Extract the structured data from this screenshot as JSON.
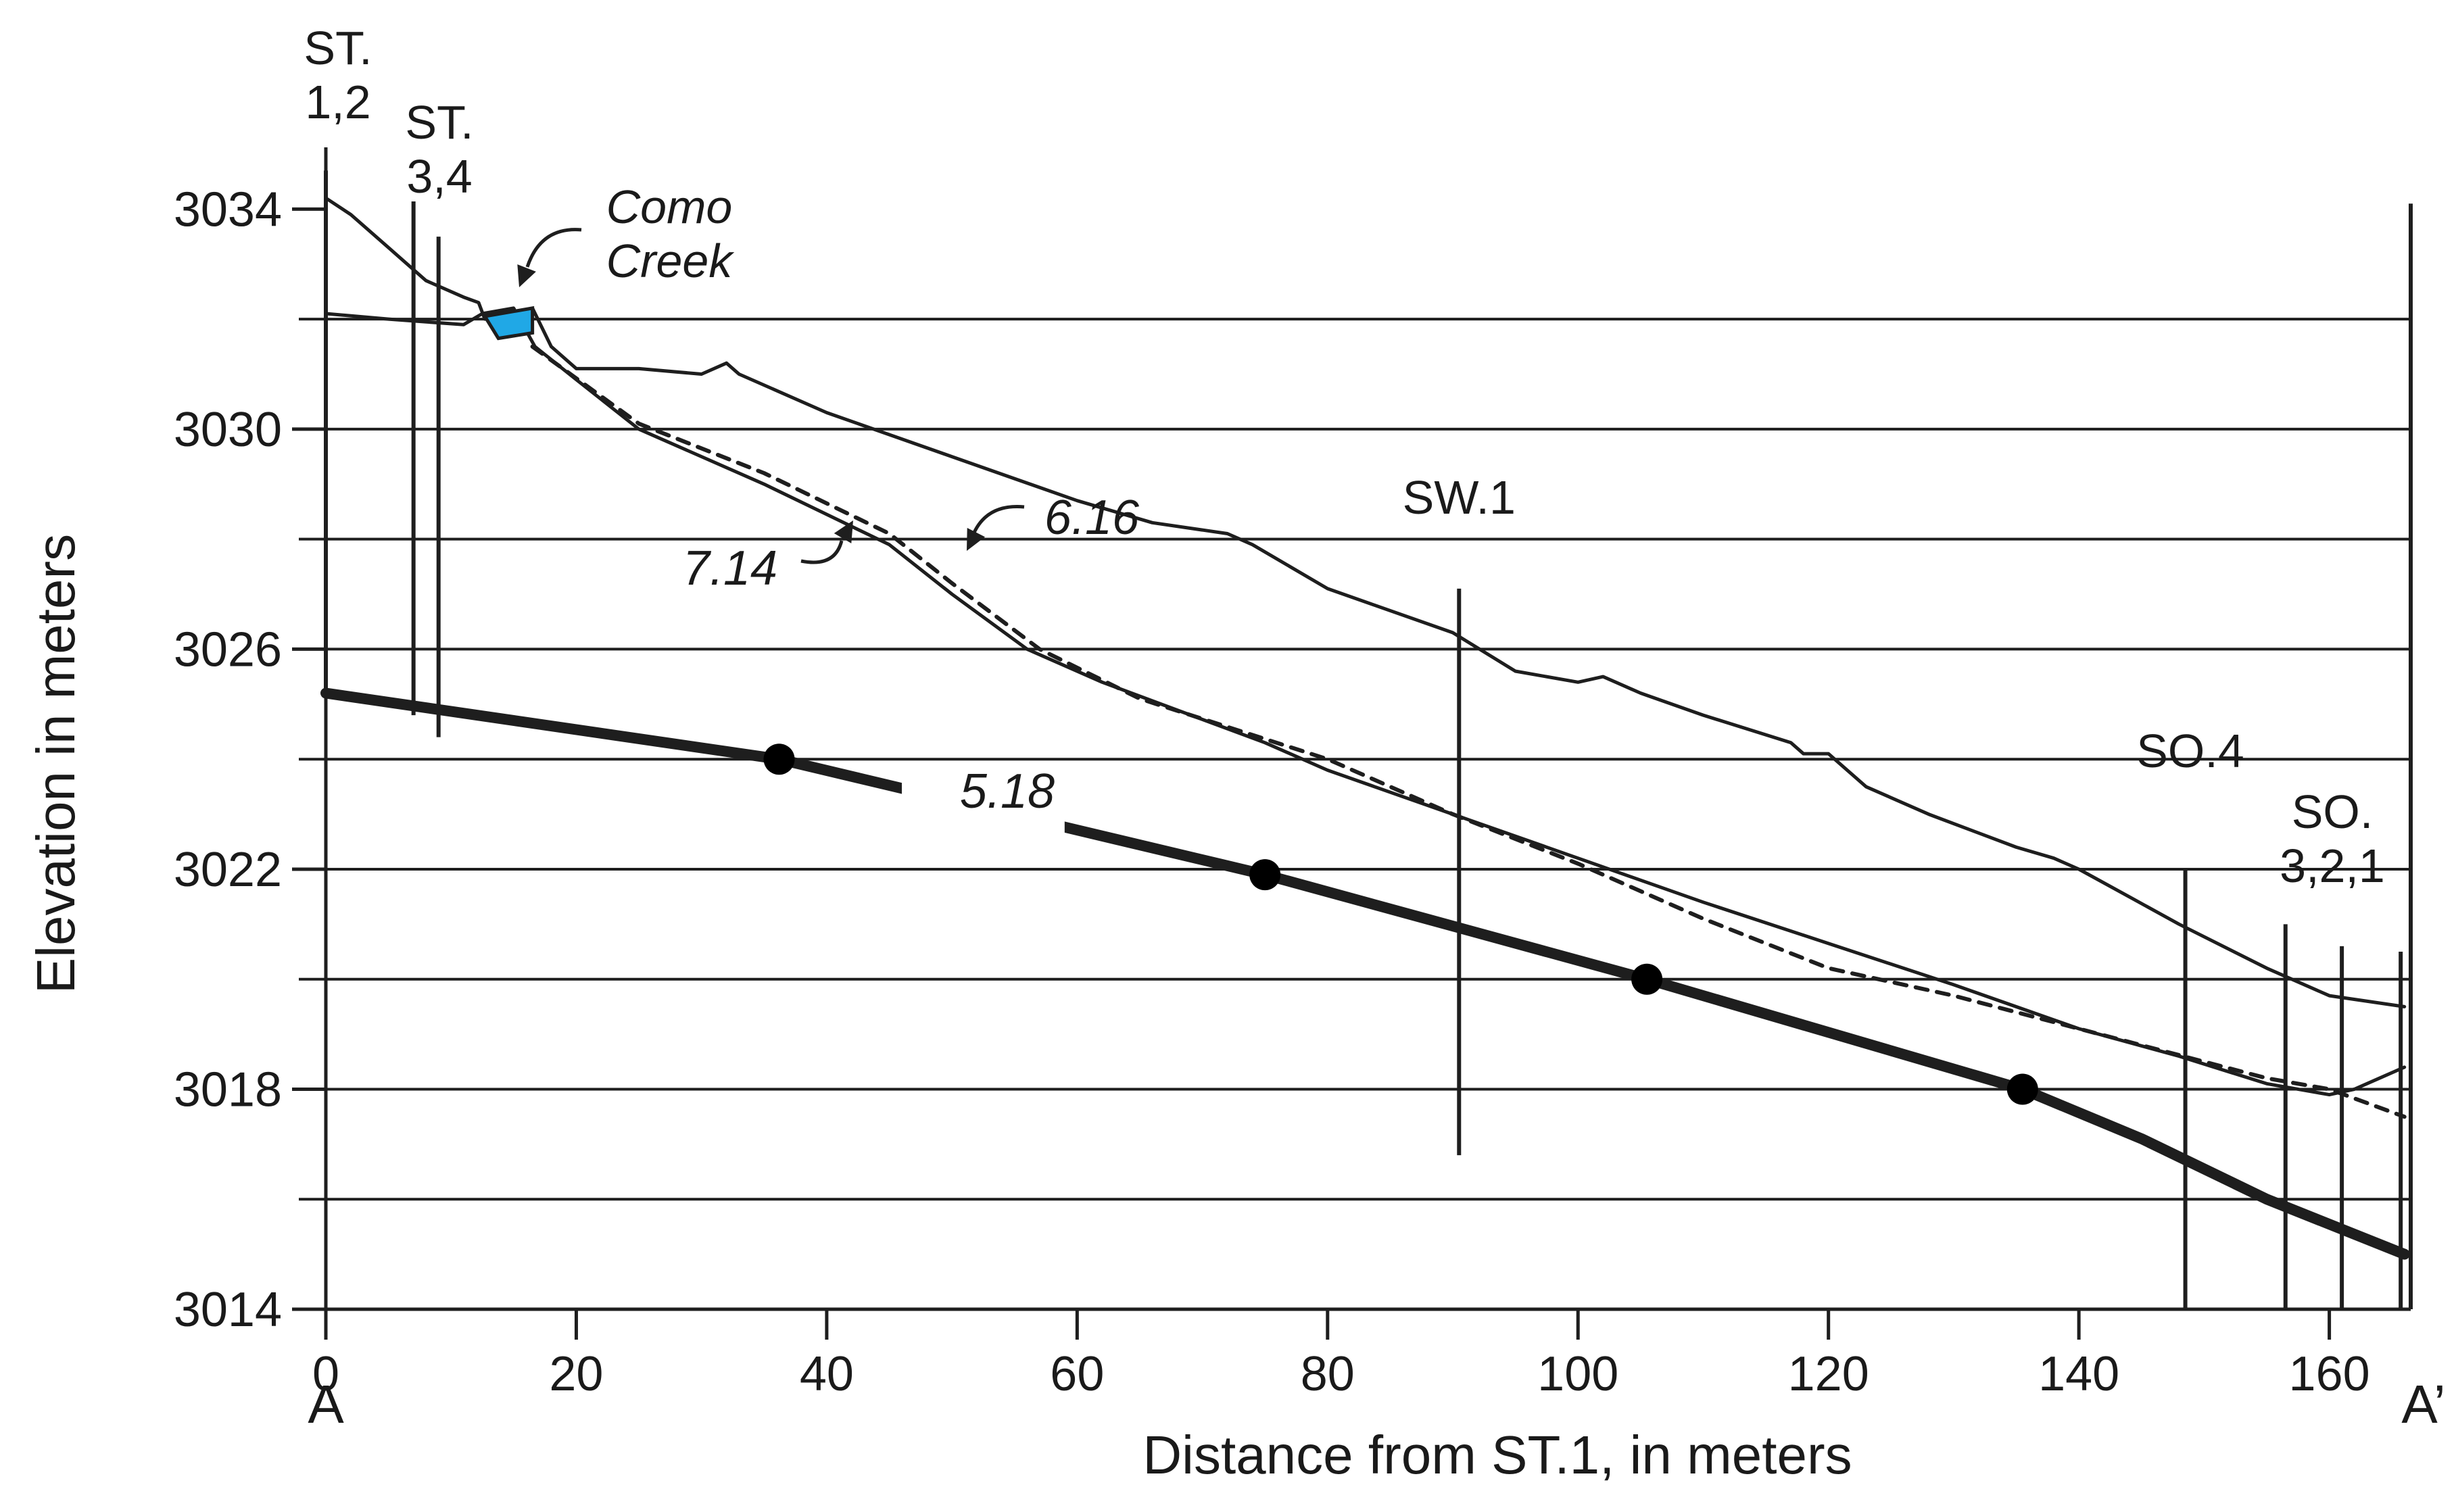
{
  "chart_data": {
    "type": "line",
    "title": "",
    "xlabel": "Distance from ST.1, in meters",
    "ylabel": "Elevation in meters",
    "xlim": [
      0,
      166.5
    ],
    "ylim": [
      3014,
      3035
    ],
    "xticks": [
      0,
      20,
      40,
      60,
      80,
      100,
      120,
      140,
      160
    ],
    "yticks": [
      3014,
      3018,
      3022,
      3026,
      3030,
      3034
    ],
    "gridlines_y": [
      3016,
      3018,
      3020,
      3022,
      3024,
      3026,
      3028,
      3030,
      3032
    ],
    "section_ends": {
      "left": "A",
      "right": "A’"
    },
    "creek": {
      "name_line1": "Como",
      "name_line2": "Creek",
      "x": [
        12.7,
        16.5
      ],
      "y": [
        3032.0,
        3032.2
      ]
    },
    "series": [
      {
        "name": "ground surface",
        "style": "solid",
        "x": [
          0,
          2,
          5,
          8,
          11,
          12.2,
          12.7,
          14,
          15.5,
          16.5,
          18,
          20,
          25,
          30,
          32,
          33,
          40,
          50,
          60,
          66,
          72,
          74,
          80,
          90,
          95,
          100,
          102,
          105,
          110,
          117,
          118,
          120,
          123,
          128,
          135,
          138,
          140,
          144,
          148,
          155,
          160,
          166
        ],
        "y": [
          3034.2,
          3033.9,
          3033.3,
          3032.7,
          3032.4,
          3032.3,
          3032.0,
          3032.1,
          3032.1,
          3032.2,
          3031.5,
          3031.1,
          3031.1,
          3031.0,
          3031.2,
          3031.0,
          3030.3,
          3029.5,
          3028.7,
          3028.3,
          3028.1,
          3027.9,
          3027.1,
          3026.3,
          3025.6,
          3025.4,
          3025.5,
          3025.2,
          3024.8,
          3024.3,
          3024.1,
          3024.1,
          3023.5,
          3023.0,
          3022.4,
          3022.2,
          3022.0,
          3021.5,
          3021.0,
          3020.2,
          3019.7,
          3019.5
        ]
      },
      {
        "name": "water table 7.14",
        "style": "solid",
        "label": "7.14",
        "x": [
          0,
          5,
          11,
          12.5,
          15,
          16.7,
          20,
          25,
          35,
          45,
          50,
          56,
          62,
          75,
          80,
          90,
          100,
          110,
          130,
          140,
          148,
          155,
          160,
          162,
          164,
          166
        ],
        "y": [
          3032.1,
          3032.0,
          3031.9,
          3032.1,
          3032.2,
          3031.5,
          3030.9,
          3030.0,
          3029.0,
          3027.9,
          3027.0,
          3026.0,
          3025.4,
          3024.3,
          3023.8,
          3023.0,
          3022.2,
          3021.4,
          3019.9,
          3019.1,
          3018.6,
          3018.1,
          3017.9,
          3018.0,
          3018.2,
          3018.4
        ]
      },
      {
        "name": "water table 6.16",
        "style": "dashed",
        "label": "6.16",
        "x": [
          16.5,
          25,
          35,
          45,
          50,
          57,
          65,
          80,
          90,
          100,
          110,
          120,
          130,
          140,
          150,
          155,
          160,
          166
        ],
        "y": [
          3031.5,
          3030.1,
          3029.2,
          3028.1,
          3027.2,
          3026.0,
          3025.1,
          3024.0,
          3023.0,
          3022.1,
          3021.1,
          3020.2,
          3019.7,
          3019.1,
          3018.5,
          3018.2,
          3018.0,
          3017.5
        ]
      },
      {
        "name": "water table 5.18",
        "style": "bold",
        "label": "5.18",
        "x": [
          0,
          36.2,
          75,
          105.5,
          135.5,
          145,
          155,
          166
        ],
        "y": [
          3025.2,
          3024.0,
          3021.9,
          3020.0,
          3018.0,
          3017.1,
          3016.0,
          3015.0
        ],
        "markers": {
          "x": [
            36.2,
            75,
            105.5,
            135.5
          ],
          "y": [
            3024.0,
            3021.9,
            3020.0,
            3018.0
          ]
        }
      }
    ],
    "wells": [
      {
        "id": "st1",
        "line1": "ST.",
        "line2": "1,2",
        "x": 0,
        "top": 3034.7,
        "bottom": 3025.2
      },
      {
        "id": "st3",
        "line1": "ST.",
        "line2": "3,4",
        "x": 7,
        "bottom": 3024.8
      },
      {
        "id": "st4",
        "x": 9,
        "top": 3033.5,
        "bottom": 3024.4
      },
      {
        "id": "sw1",
        "line1": "SW.1",
        "x": 90.5,
        "top": 3027.1,
        "bottom": 3016.8
      },
      {
        "id": "so4",
        "line1": "SO.4",
        "x": 148.5,
        "top": 3022.0,
        "bottom": 3014.0
      },
      {
        "id": "so3",
        "line1": "SO.",
        "line2": "3,2,1",
        "x": 156.5,
        "top": 3021.0,
        "bottom": 3014.0
      },
      {
        "id": "so2",
        "x": 161,
        "top": 3020.6,
        "bottom": 3014.0
      },
      {
        "id": "so1",
        "x": 165.7,
        "top": 3020.5,
        "bottom": 3014.0
      },
      {
        "id": "end",
        "x": 166.5,
        "top": 3034.1,
        "bottom": 3014.0
      }
    ]
  }
}
